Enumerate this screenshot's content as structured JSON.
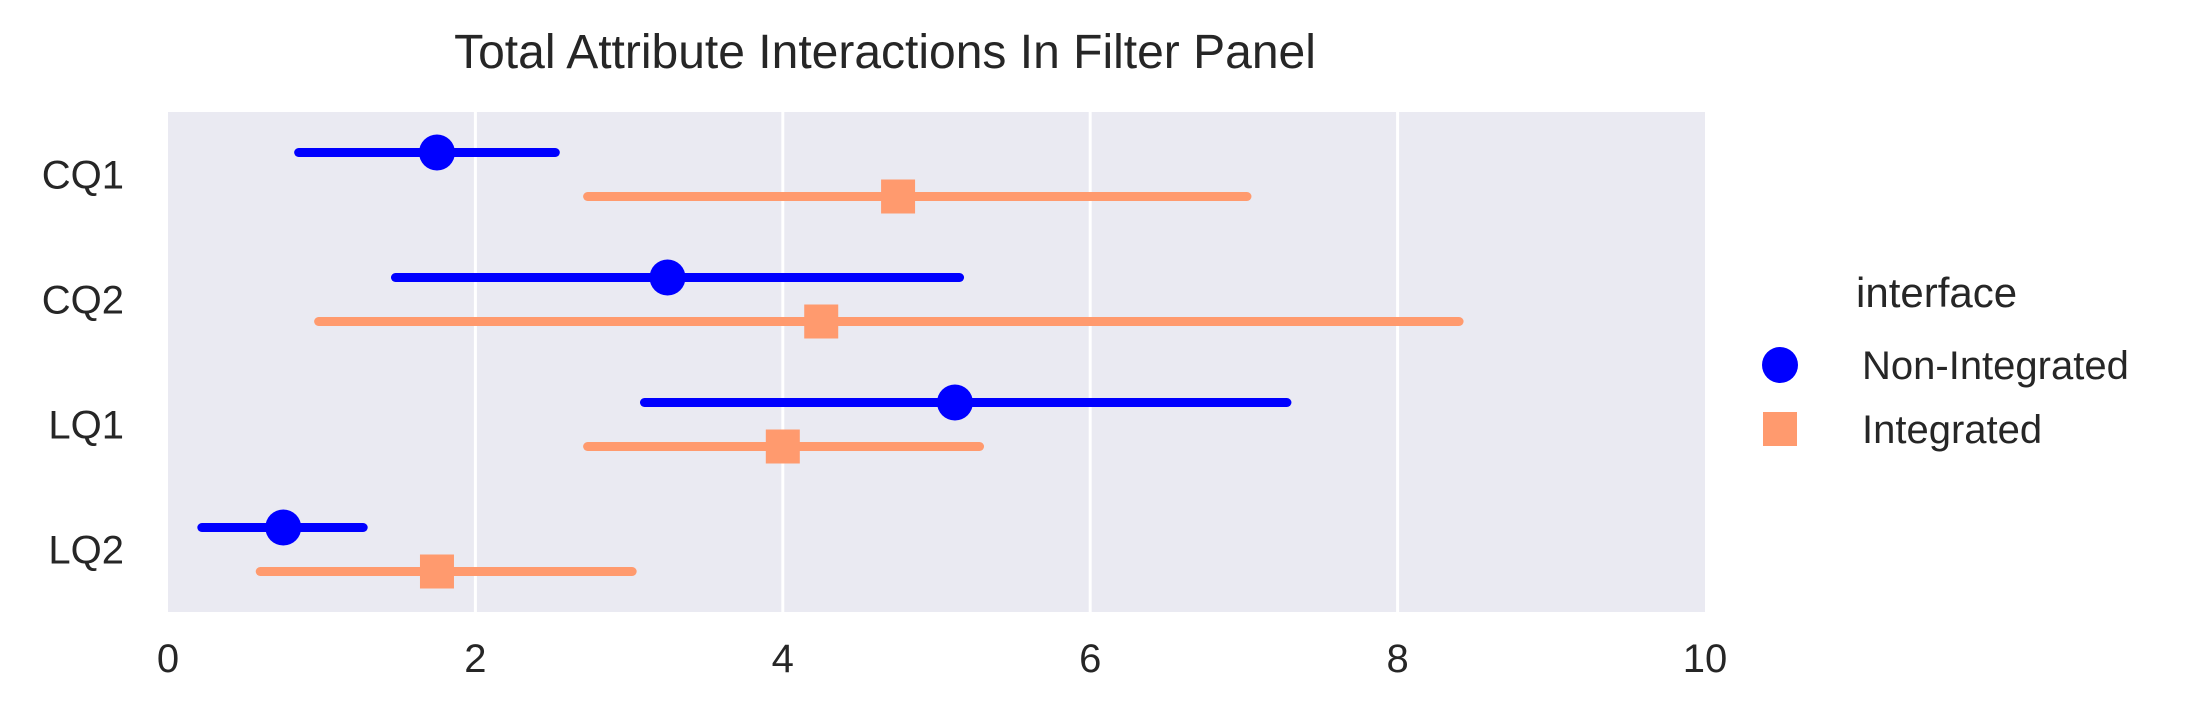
{
  "chart_data": {
    "type": "pointplot",
    "title": "Total Attribute Interactions In Filter Panel",
    "xlabel": "",
    "ylabel": "",
    "xlim": [
      0,
      10
    ],
    "xticks": [
      "0",
      "2",
      "4",
      "6",
      "8",
      "10"
    ],
    "categories": [
      "CQ1",
      "CQ2",
      "LQ1",
      "LQ2"
    ],
    "grid": true,
    "legend": {
      "title": "interface",
      "placement": "right"
    },
    "series": [
      {
        "name": "Non-Integrated",
        "color": "#0000ff",
        "marker": "circle",
        "values": [
          1.75,
          3.25,
          5.12,
          0.75
        ],
        "ci_low": [
          0.85,
          1.48,
          3.1,
          0.22
        ],
        "ci_high": [
          2.52,
          5.15,
          7.28,
          1.27
        ]
      },
      {
        "name": "Integrated",
        "color": "#ff9a6e",
        "marker": "square",
        "values": [
          4.75,
          4.25,
          4.0,
          1.75
        ],
        "ci_low": [
          2.73,
          0.98,
          2.73,
          0.6
        ],
        "ci_high": [
          7.02,
          8.4,
          5.28,
          3.02
        ]
      }
    ]
  }
}
